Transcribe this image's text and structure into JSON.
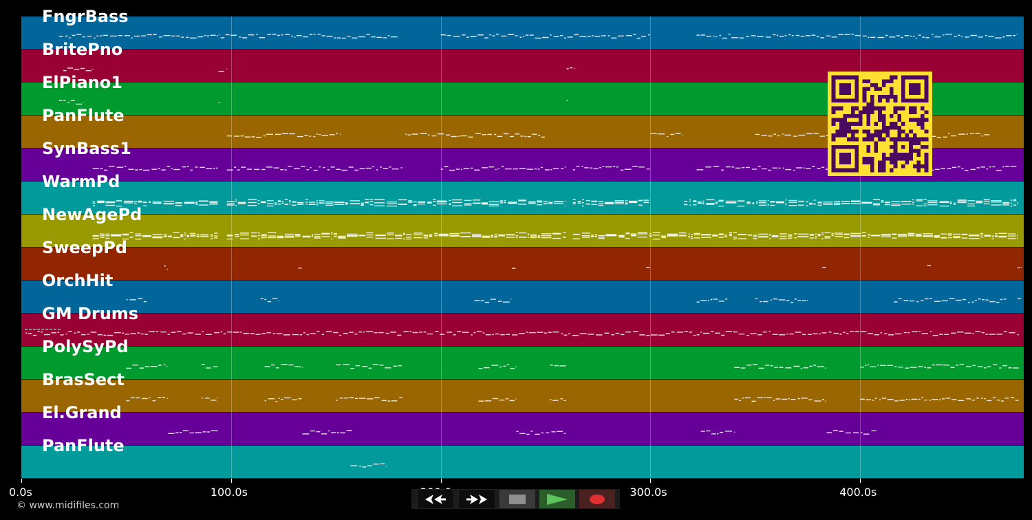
{
  "app": {
    "copyright": "© www.midifiles.com"
  },
  "colors": {
    "background": "#000000",
    "note": "#ffffff",
    "qr_fg": "#4a0a5e",
    "qr_bg": "#ffe033"
  },
  "tracks": [
    {
      "name": "FngrBass",
      "color": "#02669a"
    },
    {
      "name": "BritePno",
      "color": "#990033"
    },
    {
      "name": "ElPiano1",
      "color": "#009a2e"
    },
    {
      "name": "PanFlute",
      "color": "#9a6602"
    },
    {
      "name": "SynBass1",
      "color": "#660099"
    },
    {
      "name": "WarmPd",
      "color": "#029a9a"
    },
    {
      "name": "NewAgePd",
      "color": "#999a02"
    },
    {
      "name": "SweepPd",
      "color": "#922602"
    },
    {
      "name": "OrchHit",
      "color": "#02669a"
    },
    {
      "name": "GM Drums",
      "color": "#990033"
    },
    {
      "name": "PolySyPd",
      "color": "#009a2e"
    },
    {
      "name": "BrasSect",
      "color": "#9a6602"
    },
    {
      "name": "El.Grand",
      "color": "#660099"
    },
    {
      "name": "PanFlute",
      "color": "#029a9a"
    }
  ],
  "timeline": {
    "unit": "s",
    "ticks": [
      {
        "label": "0.0s",
        "seconds": 0
      },
      {
        "label": "100.0s",
        "seconds": 100
      },
      {
        "label": "200.0s",
        "seconds": 200
      },
      {
        "label": "300.0s",
        "seconds": 300
      },
      {
        "label": "400.0s",
        "seconds": 400
      }
    ],
    "max_seconds": 478
  },
  "controls": {
    "rewind": "rewind-button",
    "fast_forward": "fast-forward-button",
    "stop": "stop-button",
    "play": "play-button",
    "record": "record-button"
  },
  "note_regions": [
    {
      "track": 0,
      "segments": [
        [
          18,
          95
        ],
        [
          95,
          180
        ],
        [
          200,
          300
        ],
        [
          322,
          475
        ]
      ]
    },
    {
      "track": 1,
      "segments": [
        [
          20,
          34
        ],
        [
          94,
          98
        ],
        [
          260,
          264
        ]
      ]
    },
    {
      "track": 2,
      "segments": [
        [
          18,
          30
        ],
        [
          94,
          95
        ],
        [
          260,
          261
        ]
      ]
    },
    {
      "track": 3,
      "segments": [
        [
          98,
          152
        ],
        [
          183,
          250
        ],
        [
          300,
          315
        ],
        [
          350,
          462
        ]
      ]
    },
    {
      "track": 4,
      "segments": [
        [
          34,
          94
        ],
        [
          98,
          182
        ],
        [
          200,
          260
        ],
        [
          263,
          300
        ],
        [
          322,
          475
        ]
      ]
    },
    {
      "track": 5,
      "segments": [
        [
          34,
          94
        ],
        [
          98,
          260
        ],
        [
          263,
          300
        ],
        [
          316,
          475
        ]
      ]
    },
    {
      "track": 6,
      "segments": [
        [
          34,
          94
        ],
        [
          98,
          260
        ],
        [
          263,
          475
        ]
      ]
    },
    {
      "track": 7,
      "segments": [
        [
          68,
          70
        ],
        [
          132,
          134
        ],
        [
          234,
          236
        ],
        [
          298,
          300
        ],
        [
          382,
          384
        ],
        [
          432,
          434
        ],
        [
          475,
          477
        ]
      ]
    },
    {
      "track": 8,
      "segments": [
        [
          50,
          60
        ],
        [
          114,
          123
        ],
        [
          216,
          234
        ],
        [
          322,
          337
        ],
        [
          350,
          375
        ],
        [
          416,
          470
        ],
        [
          475,
          477
        ]
      ]
    },
    {
      "track": 9,
      "segments": [
        [
          2,
          476
        ]
      ]
    },
    {
      "track": 10,
      "segments": [
        [
          50,
          70
        ],
        [
          86,
          94
        ],
        [
          116,
          134
        ],
        [
          150,
          182
        ],
        [
          218,
          236
        ],
        [
          252,
          260
        ],
        [
          340,
          384
        ],
        [
          400,
          476
        ]
      ]
    },
    {
      "track": 11,
      "segments": [
        [
          50,
          70
        ],
        [
          86,
          94
        ],
        [
          116,
          134
        ],
        [
          150,
          182
        ],
        [
          218,
          236
        ],
        [
          252,
          260
        ],
        [
          340,
          384
        ],
        [
          400,
          476
        ]
      ]
    },
    {
      "track": 12,
      "segments": [
        [
          70,
          94
        ],
        [
          134,
          158
        ],
        [
          236,
          260
        ],
        [
          324,
          340
        ],
        [
          384,
          408
        ]
      ]
    },
    {
      "track": 13,
      "segments": [
        [
          157,
          174
        ]
      ]
    }
  ]
}
